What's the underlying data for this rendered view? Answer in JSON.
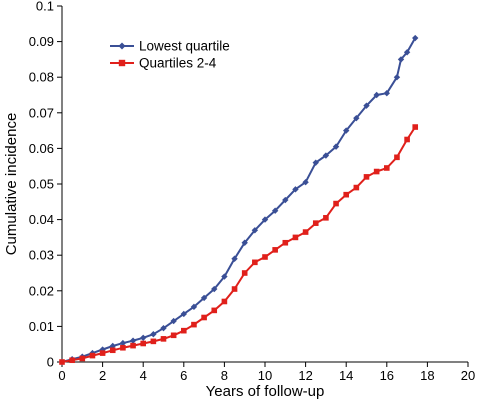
{
  "chart_data": {
    "type": "line",
    "title": "",
    "xlabel": "Years of follow-up",
    "ylabel": "Cumulative incidence",
    "xlim": [
      0,
      20
    ],
    "ylim": [
      0,
      0.1
    ],
    "xticks": [
      "0",
      "2",
      "4",
      "6",
      "8",
      "10",
      "12",
      "14",
      "16",
      "18",
      "20"
    ],
    "yticks": [
      "0",
      "0.01",
      "0.02",
      "0.03",
      "0.04",
      "0.05",
      "0.06",
      "0.07",
      "0.08",
      "0.09",
      "0.1"
    ],
    "grid": false,
    "legend_position": "top-left",
    "series": [
      {
        "name": "Lowest quartile",
        "color": "#3a4f96",
        "marker": "diamond",
        "points": [
          [
            0,
            0
          ],
          [
            0.5,
            0.0008
          ],
          [
            1,
            0.0015
          ],
          [
            1.5,
            0.0025
          ],
          [
            2,
            0.0035
          ],
          [
            2.5,
            0.0045
          ],
          [
            3,
            0.0053
          ],
          [
            3.5,
            0.006
          ],
          [
            4,
            0.0068
          ],
          [
            4.5,
            0.0078
          ],
          [
            5,
            0.0095
          ],
          [
            5.5,
            0.0115
          ],
          [
            6,
            0.0135
          ],
          [
            6.5,
            0.0155
          ],
          [
            7,
            0.018
          ],
          [
            7.5,
            0.0205
          ],
          [
            8,
            0.024
          ],
          [
            8.5,
            0.029
          ],
          [
            9,
            0.0335
          ],
          [
            9.5,
            0.037
          ],
          [
            10,
            0.04
          ],
          [
            10.5,
            0.0425
          ],
          [
            11,
            0.0455
          ],
          [
            11.5,
            0.0485
          ],
          [
            12,
            0.0505
          ],
          [
            12.5,
            0.056
          ],
          [
            13,
            0.058
          ],
          [
            13.5,
            0.0605
          ],
          [
            14,
            0.065
          ],
          [
            14.5,
            0.0685
          ],
          [
            15,
            0.072
          ],
          [
            15.5,
            0.075
          ],
          [
            16,
            0.0755
          ],
          [
            16.5,
            0.08
          ],
          [
            16.7,
            0.085
          ],
          [
            17,
            0.087
          ],
          [
            17.4,
            0.091
          ]
        ]
      },
      {
        "name": "Quartiles 2-4",
        "color": "#e0201b",
        "marker": "square",
        "points": [
          [
            0,
            0
          ],
          [
            0.5,
            0.0005
          ],
          [
            1,
            0.001
          ],
          [
            1.5,
            0.0018
          ],
          [
            2,
            0.0025
          ],
          [
            2.5,
            0.0033
          ],
          [
            3,
            0.004
          ],
          [
            3.5,
            0.0046
          ],
          [
            4,
            0.0052
          ],
          [
            4.5,
            0.0058
          ],
          [
            5,
            0.0065
          ],
          [
            5.5,
            0.0075
          ],
          [
            6,
            0.0088
          ],
          [
            6.5,
            0.0105
          ],
          [
            7,
            0.0125
          ],
          [
            7.5,
            0.0145
          ],
          [
            8,
            0.017
          ],
          [
            8.5,
            0.0205
          ],
          [
            9,
            0.025
          ],
          [
            9.5,
            0.028
          ],
          [
            10,
            0.0295
          ],
          [
            10.5,
            0.0315
          ],
          [
            11,
            0.0335
          ],
          [
            11.5,
            0.035
          ],
          [
            12,
            0.0365
          ],
          [
            12.5,
            0.039
          ],
          [
            13,
            0.0405
          ],
          [
            13.5,
            0.0445
          ],
          [
            14,
            0.047
          ],
          [
            14.5,
            0.049
          ],
          [
            15,
            0.052
          ],
          [
            15.5,
            0.0535
          ],
          [
            16,
            0.0545
          ],
          [
            16.5,
            0.0575
          ],
          [
            17,
            0.0625
          ],
          [
            17.4,
            0.066
          ]
        ]
      }
    ]
  }
}
